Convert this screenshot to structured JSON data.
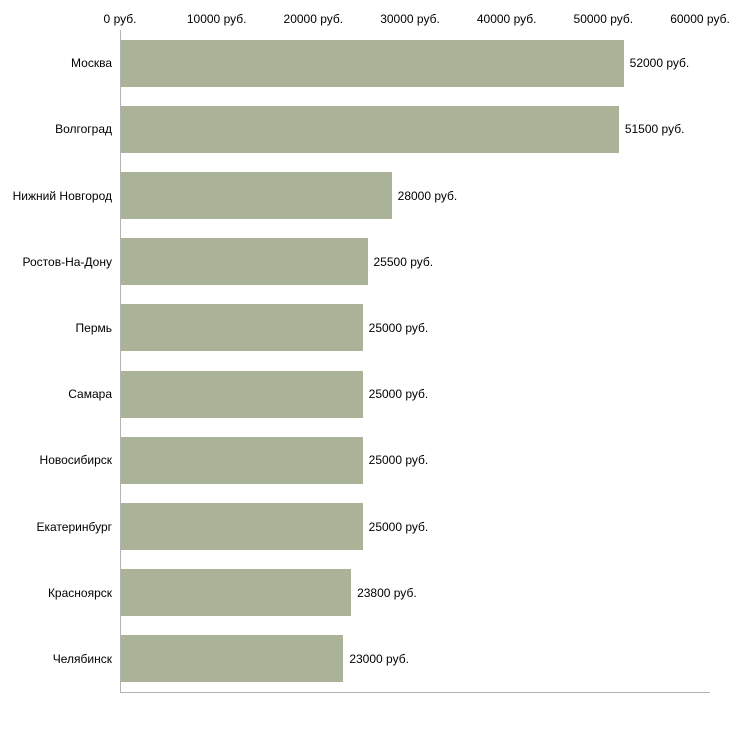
{
  "chart_data": {
    "type": "bar",
    "orientation": "horizontal",
    "title": "",
    "xlabel": "",
    "ylabel": "",
    "xlim": [
      0,
      60000
    ],
    "grid": false,
    "legend": false,
    "bar_color": "#aab397",
    "axis_color": "#b3b3b3",
    "text_color": "#000000",
    "categories": [
      "Москва",
      "Волгоград",
      "Нижний Новгород",
      "Ростов-На-Дону",
      "Пермь",
      "Самара",
      "Новосибирск",
      "Екатеринбург",
      "Красноярск",
      "Челябинск"
    ],
    "values": [
      52000,
      51500,
      28000,
      25500,
      25000,
      25000,
      25000,
      25000,
      23800,
      23000
    ],
    "value_labels": [
      "52000 руб.",
      "51500 руб.",
      "28000 руб.",
      "25500 руб.",
      "25000 руб.",
      "25000 руб.",
      "25000 руб.",
      "25000 руб.",
      "23800 руб.",
      "23000 руб."
    ],
    "x_ticks": [
      {
        "value": 0,
        "label": "0 руб."
      },
      {
        "value": 10000,
        "label": "10000 руб."
      },
      {
        "value": 20000,
        "label": "20000 руб."
      },
      {
        "value": 30000,
        "label": "30000 руб."
      },
      {
        "value": 40000,
        "label": "40000 руб."
      },
      {
        "value": 50000,
        "label": "50000 руб."
      },
      {
        "value": 60000,
        "label": "60000 руб."
      }
    ]
  }
}
